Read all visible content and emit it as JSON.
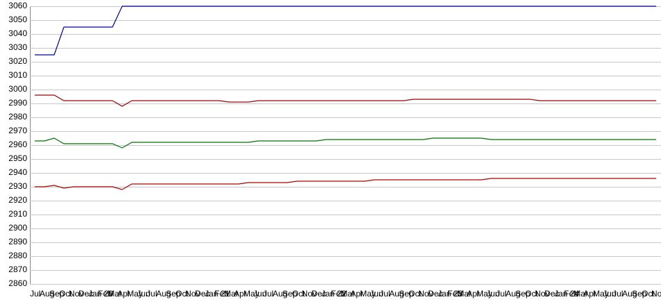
{
  "chart_data": {
    "type": "line",
    "categories": [
      "Jul",
      "Aug",
      "Sep",
      "Oct",
      "Nov",
      "Dec",
      "Jan 20",
      "Feb",
      "Mar",
      "Apr",
      "May",
      "Jun",
      "Jul",
      "Aug",
      "Sep",
      "Oct",
      "Nov",
      "Dec",
      "Jan 21",
      "Feb",
      "Mar",
      "Apr",
      "May",
      "Jun",
      "Jul",
      "Aug",
      "Sep",
      "Oct",
      "Nov",
      "Dec",
      "Jan 22",
      "Feb",
      "Mar",
      "Apr",
      "May",
      "Jun",
      "Jul",
      "Aug",
      "Sep",
      "Oct",
      "Nov",
      "Dec",
      "Jan 23",
      "Feb",
      "Mar",
      "Apr",
      "May",
      "Jun",
      "Jul",
      "Aug",
      "Sep",
      "Oct",
      "Nov",
      "Dec",
      "Jan 24",
      "Feb",
      "Mar",
      "Apr",
      "May",
      "Jun",
      "Jul",
      "Aug",
      "Sep",
      "Oct",
      "Nov"
    ],
    "series": [
      {
        "color": "#0000a0",
        "values": [
          3025,
          3025,
          3025,
          3045,
          3045,
          3045,
          3045,
          3045,
          3045,
          3060,
          3060,
          3060,
          3060,
          3060,
          3060,
          3060,
          3060,
          3060,
          3060,
          3060,
          3060,
          3060,
          3060,
          3060,
          3060,
          3060,
          3060,
          3060,
          3060,
          3060,
          3060,
          3060,
          3060,
          3060,
          3060,
          3060,
          3060,
          3060,
          3060,
          3060,
          3060,
          3060,
          3060,
          3060,
          3060,
          3060,
          3060,
          3060,
          3060,
          3060,
          3060,
          3060,
          3060,
          3060,
          3060,
          3060,
          3060,
          3060,
          3060,
          3060,
          3060,
          3060,
          3060,
          3060,
          3060
        ]
      },
      {
        "color": "#a00000",
        "values": [
          2996,
          2996,
          2996,
          2992,
          2992,
          2992,
          2992,
          2992,
          2992,
          2988,
          2992,
          2992,
          2992,
          2992,
          2992,
          2992,
          2992,
          2992,
          2992,
          2992,
          2991,
          2991,
          2991,
          2992,
          2992,
          2992,
          2992,
          2992,
          2992,
          2992,
          2992,
          2992,
          2992,
          2992,
          2992,
          2992,
          2992,
          2992,
          2992,
          2993,
          2993,
          2993,
          2993,
          2993,
          2993,
          2993,
          2993,
          2993,
          2993,
          2993,
          2993,
          2993,
          2992,
          2992,
          2992,
          2992,
          2992,
          2992,
          2992,
          2992,
          2992,
          2992,
          2992,
          2992,
          2992
        ]
      },
      {
        "color": "#007000",
        "values": [
          2963,
          2963,
          2965,
          2961,
          2961,
          2961,
          2961,
          2961,
          2961,
          2958,
          2962,
          2962,
          2962,
          2962,
          2962,
          2962,
          2962,
          2962,
          2962,
          2962,
          2962,
          2962,
          2962,
          2963,
          2963,
          2963,
          2963,
          2963,
          2963,
          2963,
          2964,
          2964,
          2964,
          2964,
          2964,
          2964,
          2964,
          2964,
          2964,
          2964,
          2964,
          2965,
          2965,
          2965,
          2965,
          2965,
          2965,
          2964,
          2964,
          2964,
          2964,
          2964,
          2964,
          2964,
          2964,
          2964,
          2964,
          2964,
          2964,
          2964,
          2964,
          2964,
          2964,
          2964,
          2964
        ]
      },
      {
        "color": "#b00000",
        "values": [
          2930,
          2930,
          2931,
          2929,
          2930,
          2930,
          2930,
          2930,
          2930,
          2928,
          2932,
          2932,
          2932,
          2932,
          2932,
          2932,
          2932,
          2932,
          2932,
          2932,
          2932,
          2932,
          2933,
          2933,
          2933,
          2933,
          2933,
          2934,
          2934,
          2934,
          2934,
          2934,
          2934,
          2934,
          2934,
          2935,
          2935,
          2935,
          2935,
          2935,
          2935,
          2935,
          2935,
          2935,
          2935,
          2935,
          2935,
          2936,
          2936,
          2936,
          2936,
          2936,
          2936,
          2936,
          2936,
          2936,
          2936,
          2936,
          2936,
          2936,
          2936,
          2936,
          2936,
          2936,
          2936
        ]
      }
    ],
    "ylim": [
      2860,
      3060
    ],
    "yticks": [
      2860,
      2870,
      2880,
      2890,
      2900,
      2910,
      2920,
      2930,
      2940,
      2950,
      2960,
      2970,
      2980,
      2990,
      3000,
      3010,
      3020,
      3030,
      3040,
      3050,
      3060
    ],
    "grid": true
  }
}
